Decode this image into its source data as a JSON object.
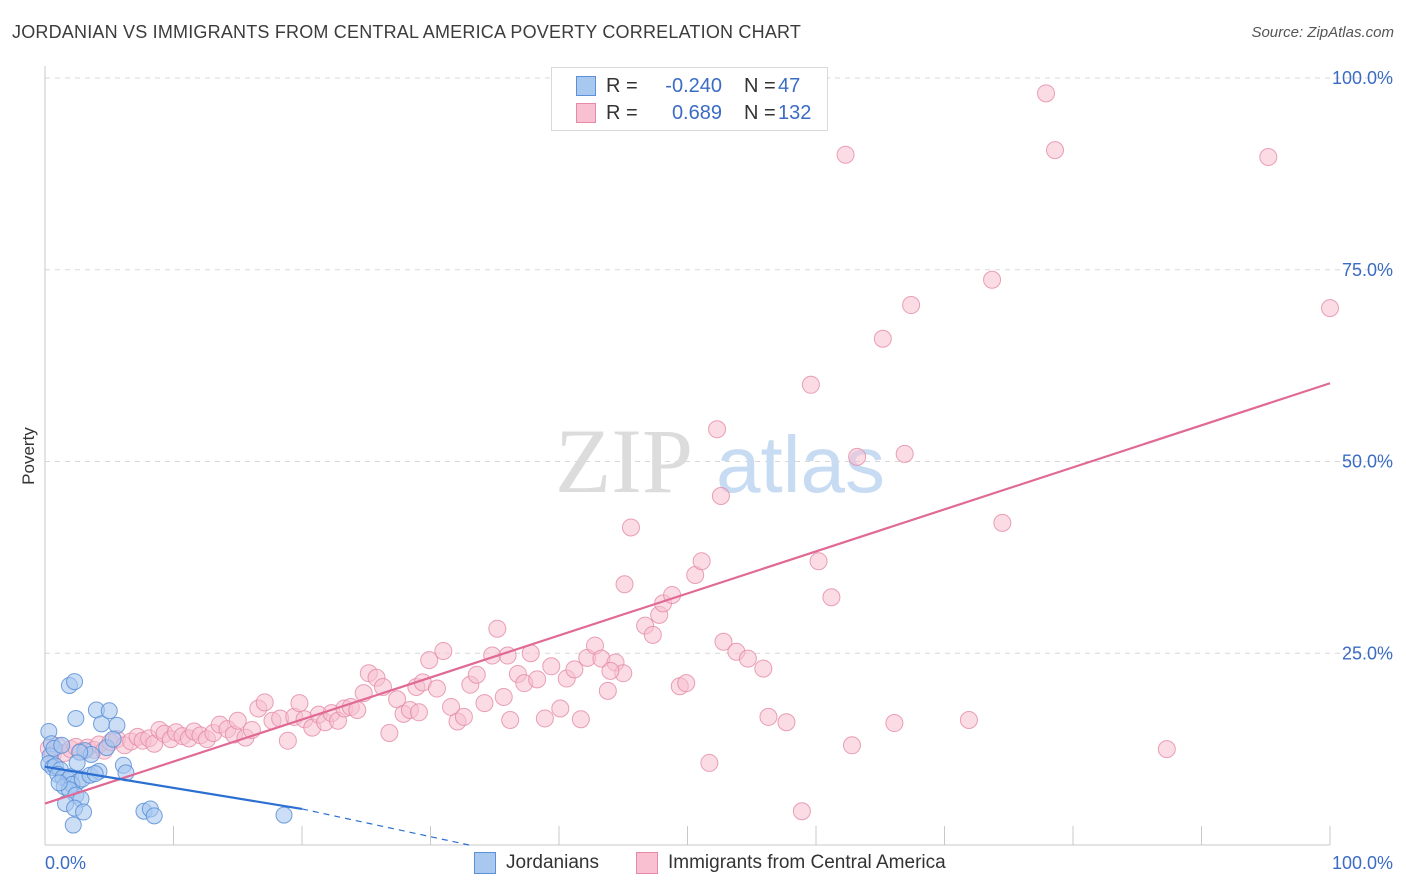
{
  "header": {
    "title": "JORDANIAN VS IMMIGRANTS FROM CENTRAL AMERICA POVERTY CORRELATION CHART",
    "source": "Source: ZipAtlas.com"
  },
  "watermark": {
    "zip": "ZIP",
    "atlas": "atlas"
  },
  "legend": {
    "jordanian": {
      "r_label": "R =",
      "r_value": "-0.240",
      "n_label": "N =",
      "n_value": "47",
      "color": "#a9c8f0",
      "border": "#5b8fd6"
    },
    "central_america": {
      "r_label": "R =",
      "r_value": "0.689",
      "n_label": "N =",
      "n_value": "132",
      "color": "#f8c0d0",
      "border": "#e48aa6"
    }
  },
  "bottom_legend": {
    "jordanians": "Jordanians",
    "central_america": "Immigrants from Central America"
  },
  "colors": {
    "blue_fill": "#a9c8f0",
    "blue_stroke": "#5b8fd6",
    "blue_line": "#2b6fd1",
    "pink_fill": "#f8c0d0",
    "pink_stroke": "#e48aa6",
    "pink_line": "#e06a95",
    "tick_label": "#3b6cc4",
    "grid": "#d8d8d8"
  },
  "chart_data": {
    "type": "scatter",
    "title": "JORDANIAN VS IMMIGRANTS FROM CENTRAL AMERICA POVERTY CORRELATION CHART",
    "xlabel": "",
    "ylabel": "Poverty",
    "xlim": [
      0,
      100
    ],
    "ylim": [
      0,
      100
    ],
    "x_tick_labels": [
      "0.0%",
      "100.0%"
    ],
    "y_ticks": [
      25,
      50,
      75,
      100
    ],
    "y_tick_labels": [
      "25.0%",
      "50.0%",
      "75.0%",
      "100.0%"
    ],
    "grid": true,
    "series": [
      {
        "name": "Jordanians",
        "r": -0.24,
        "n": 47,
        "trend": {
          "x": [
            0,
            20
          ],
          "y": [
            10.2,
            4.7
          ]
        },
        "trend_extension": {
          "x": [
            20,
            33
          ],
          "y": [
            4.7,
            0
          ]
        },
        "points": [
          [
            0.3,
            14.8
          ],
          [
            0.5,
            13.2
          ],
          [
            0.4,
            11.6
          ],
          [
            0.3,
            10.6
          ],
          [
            0.6,
            10.1
          ],
          [
            0.8,
            10.3
          ],
          [
            1.2,
            9.8
          ],
          [
            1.0,
            9.2
          ],
          [
            1.4,
            8.8
          ],
          [
            1.8,
            8.5
          ],
          [
            2.0,
            8.9
          ],
          [
            2.6,
            8.3
          ],
          [
            1.5,
            7.6
          ],
          [
            2.1,
            7.9
          ],
          [
            2.9,
            8.6
          ],
          [
            3.5,
            9.1
          ],
          [
            4.2,
            9.6
          ],
          [
            1.9,
            7.2
          ],
          [
            2.4,
            6.5
          ],
          [
            2.8,
            6.0
          ],
          [
            1.6,
            5.4
          ],
          [
            2.3,
            4.8
          ],
          [
            3.0,
            4.3
          ],
          [
            2.2,
            2.6
          ],
          [
            1.9,
            20.8
          ],
          [
            2.3,
            21.3
          ],
          [
            2.4,
            16.5
          ],
          [
            4.0,
            17.6
          ],
          [
            4.4,
            15.8
          ],
          [
            5.0,
            17.5
          ],
          [
            5.6,
            15.6
          ],
          [
            3.1,
            12.3
          ],
          [
            3.6,
            11.8
          ],
          [
            4.8,
            12.7
          ],
          [
            5.3,
            13.8
          ],
          [
            6.1,
            10.4
          ],
          [
            6.3,
            9.4
          ],
          [
            7.7,
            4.4
          ],
          [
            8.2,
            4.7
          ],
          [
            8.5,
            3.8
          ],
          [
            18.6,
            3.9
          ],
          [
            0.7,
            12.6
          ],
          [
            1.3,
            13.0
          ],
          [
            2.7,
            12.1
          ],
          [
            3.9,
            9.3
          ],
          [
            1.1,
            8.1
          ],
          [
            2.5,
            10.7
          ]
        ]
      },
      {
        "name": "Immigrants from Central America",
        "r": 0.689,
        "n": 132,
        "trend": {
          "x": [
            0,
            100
          ],
          "y": [
            5.4,
            60.2
          ]
        },
        "points": [
          [
            0.3,
            12.6
          ],
          [
            0.6,
            11.8
          ],
          [
            1.0,
            12.9
          ],
          [
            1.5,
            12.0
          ],
          [
            2.0,
            12.5
          ],
          [
            2.4,
            12.8
          ],
          [
            2.8,
            12.2
          ],
          [
            3.3,
            12.7
          ],
          [
            3.8,
            12.4
          ],
          [
            4.2,
            13.1
          ],
          [
            4.6,
            12.3
          ],
          [
            5.1,
            13.4
          ],
          [
            5.6,
            13.8
          ],
          [
            6.2,
            13.0
          ],
          [
            6.7,
            13.5
          ],
          [
            7.2,
            14.1
          ],
          [
            7.6,
            13.6
          ],
          [
            8.1,
            13.9
          ],
          [
            8.5,
            13.2
          ],
          [
            8.9,
            15.0
          ],
          [
            9.3,
            14.5
          ],
          [
            9.8,
            13.8
          ],
          [
            10.2,
            14.7
          ],
          [
            10.7,
            14.2
          ],
          [
            11.2,
            13.9
          ],
          [
            11.6,
            14.8
          ],
          [
            12.1,
            14.3
          ],
          [
            12.6,
            13.8
          ],
          [
            13.1,
            14.6
          ],
          [
            13.6,
            15.7
          ],
          [
            14.2,
            15.1
          ],
          [
            14.7,
            14.4
          ],
          [
            15.0,
            16.2
          ],
          [
            15.6,
            14.0
          ],
          [
            16.1,
            15.0
          ],
          [
            16.6,
            17.8
          ],
          [
            17.1,
            18.6
          ],
          [
            17.7,
            16.2
          ],
          [
            18.3,
            16.5
          ],
          [
            18.9,
            13.6
          ],
          [
            19.4,
            16.7
          ],
          [
            19.8,
            18.5
          ],
          [
            20.2,
            16.4
          ],
          [
            20.8,
            15.3
          ],
          [
            21.3,
            17.0
          ],
          [
            21.8,
            16.0
          ],
          [
            22.3,
            17.2
          ],
          [
            22.8,
            16.2
          ],
          [
            23.3,
            17.8
          ],
          [
            23.8,
            18.0
          ],
          [
            24.3,
            17.6
          ],
          [
            24.8,
            19.8
          ],
          [
            25.2,
            22.4
          ],
          [
            25.8,
            21.8
          ],
          [
            26.3,
            20.6
          ],
          [
            26.8,
            14.6
          ],
          [
            27.4,
            19.0
          ],
          [
            27.9,
            17.1
          ],
          [
            28.4,
            17.6
          ],
          [
            28.9,
            20.6
          ],
          [
            29.4,
            21.2
          ],
          [
            29.9,
            24.1
          ],
          [
            30.5,
            20.4
          ],
          [
            31.0,
            25.3
          ],
          [
            31.6,
            18.0
          ],
          [
            32.1,
            16.1
          ],
          [
            32.6,
            16.7
          ],
          [
            33.1,
            20.9
          ],
          [
            33.6,
            22.2
          ],
          [
            34.2,
            18.5
          ],
          [
            34.8,
            24.7
          ],
          [
            35.2,
            28.2
          ],
          [
            35.7,
            19.3
          ],
          [
            36.2,
            16.3
          ],
          [
            36.8,
            22.3
          ],
          [
            37.3,
            21.1
          ],
          [
            37.8,
            25.0
          ],
          [
            38.3,
            21.6
          ],
          [
            38.9,
            16.5
          ],
          [
            39.4,
            23.3
          ],
          [
            40.1,
            17.8
          ],
          [
            40.6,
            21.7
          ],
          [
            41.2,
            22.9
          ],
          [
            41.7,
            16.4
          ],
          [
            42.2,
            24.4
          ],
          [
            42.8,
            26.0
          ],
          [
            43.3,
            24.3
          ],
          [
            43.8,
            20.1
          ],
          [
            44.4,
            23.8
          ],
          [
            45.0,
            22.4
          ],
          [
            45.6,
            41.4
          ],
          [
            45.1,
            34.0
          ],
          [
            46.7,
            28.6
          ],
          [
            47.3,
            27.4
          ],
          [
            47.8,
            30.0
          ],
          [
            48.1,
            31.5
          ],
          [
            48.8,
            32.6
          ],
          [
            49.4,
            20.7
          ],
          [
            49.9,
            21.1
          ],
          [
            50.6,
            35.2
          ],
          [
            51.1,
            37.0
          ],
          [
            51.7,
            10.7
          ],
          [
            52.3,
            54.2
          ],
          [
            52.6,
            45.5
          ],
          [
            52.8,
            26.5
          ],
          [
            53.8,
            25.2
          ],
          [
            54.7,
            24.3
          ],
          [
            55.9,
            23.0
          ],
          [
            56.3,
            16.7
          ],
          [
            57.7,
            16.0
          ],
          [
            58.9,
            4.4
          ],
          [
            59.6,
            60.0
          ],
          [
            60.2,
            37.0
          ],
          [
            61.2,
            32.3
          ],
          [
            62.3,
            90.0
          ],
          [
            62.8,
            13.0
          ],
          [
            63.2,
            50.6
          ],
          [
            65.2,
            66.0
          ],
          [
            66.1,
            15.9
          ],
          [
            66.9,
            51.0
          ],
          [
            67.4,
            70.4
          ],
          [
            71.9,
            16.3
          ],
          [
            73.7,
            73.7
          ],
          [
            74.5,
            42.0
          ],
          [
            77.9,
            98.0
          ],
          [
            78.6,
            90.6
          ],
          [
            87.3,
            12.5
          ],
          [
            95.2,
            89.7
          ],
          [
            100.0,
            70.0
          ],
          [
            44.0,
            22.7
          ],
          [
            29.1,
            17.3
          ],
          [
            36.0,
            24.7
          ]
        ]
      }
    ]
  }
}
